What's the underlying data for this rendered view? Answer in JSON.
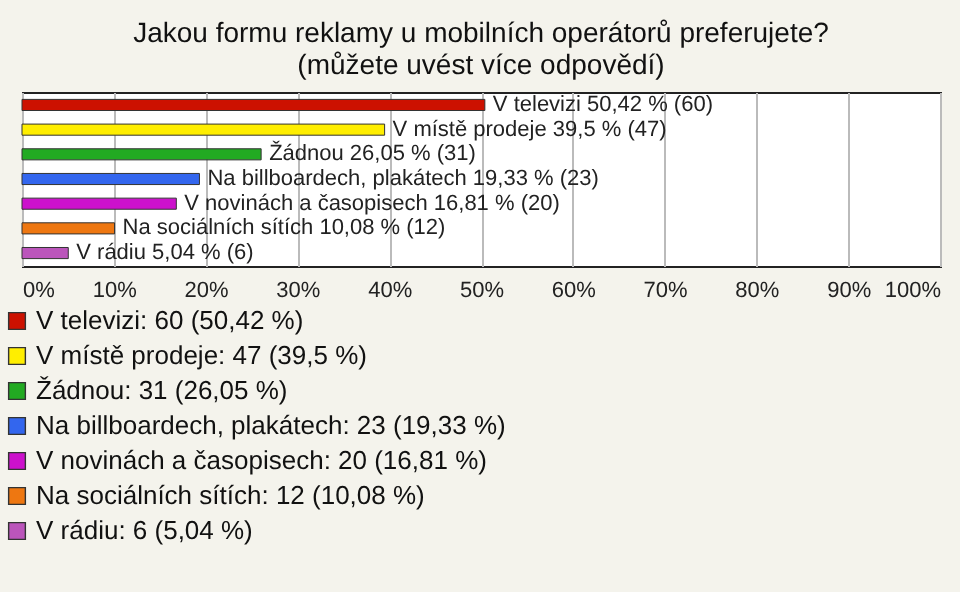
{
  "chart_data": {
    "type": "bar",
    "orientation": "horizontal",
    "title": "Jakou formu reklamy u mobilních operátorů preferujete? (můžete uvést více odpovědí)",
    "categories": [
      null,
      null,
      null,
      null,
      null,
      null,
      null
    ],
    "series": [
      {
        "name": "V televizi: 60 (50,42 %)",
        "color": "#cc1100",
        "values": [
          50.42,
          null,
          null,
          null,
          null,
          null,
          null
        ],
        "value_labels": [
          "V televizi 50,42 % (60)",
          null,
          null,
          null,
          null,
          null,
          null
        ]
      },
      {
        "name": "V místě prodeje: 47 (39,5 %)",
        "color": "#ffee00",
        "values": [
          null,
          39.5,
          null,
          null,
          null,
          null,
          null
        ],
        "value_labels": [
          null,
          "V místě prodeje 39,5 % (47)",
          null,
          null,
          null,
          null,
          null
        ]
      },
      {
        "name": "Žádnou: 31 (26,05 %)",
        "color": "#22aa22",
        "values": [
          null,
          null,
          26.05,
          null,
          null,
          null,
          null
        ],
        "value_labels": [
          null,
          null,
          "Žádnou 26,05 % (31)",
          null,
          null,
          null,
          null
        ]
      },
      {
        "name": "Na billboardech, plakátech: 23 (19,33 %)",
        "color": "#3366ee",
        "values": [
          null,
          null,
          null,
          19.33,
          null,
          null,
          null
        ],
        "value_labels": [
          null,
          null,
          null,
          "Na billboardech, plakátech 19,33 % (23)",
          null,
          null,
          null
        ]
      },
      {
        "name": "V novinách a časopisech: 20 (16,81 %)",
        "color": "#cc11cc",
        "values": [
          null,
          null,
          null,
          null,
          16.81,
          null,
          null
        ],
        "value_labels": [
          null,
          null,
          null,
          null,
          "V novinách a časopisech 16,81 % (20)",
          null,
          null
        ]
      },
      {
        "name": "Na sociálních sítích: 12 (10,08 %)",
        "color": "#ee7711",
        "values": [
          null,
          null,
          null,
          null,
          null,
          10.08,
          null
        ],
        "value_labels": [
          null,
          null,
          null,
          null,
          null,
          "Na sociálních sítích 10,08 % (12)",
          null
        ]
      },
      {
        "name": "V rádiu: 6 (5,04 %)",
        "color": "#bb55bb",
        "values": [
          null,
          null,
          null,
          null,
          null,
          null,
          5.04
        ],
        "value_labels": [
          null,
          null,
          null,
          null,
          null,
          null,
          "V rádiu 5,04 % (6)"
        ]
      }
    ],
    "xlim": [
      0,
      100
    ],
    "xticks": [
      {
        "value": 0,
        "label": "0%"
      },
      {
        "value": 10,
        "label": "10%"
      },
      {
        "value": 20,
        "label": "20%"
      },
      {
        "value": 30,
        "label": "30%"
      },
      {
        "value": 40,
        "label": "40%"
      },
      {
        "value": 50,
        "label": "50%"
      },
      {
        "value": 60,
        "label": "60%"
      },
      {
        "value": 70,
        "label": "70%"
      },
      {
        "value": 80,
        "label": "80%"
      },
      {
        "value": 90,
        "label": "90%"
      },
      {
        "value": 100,
        "label": "100%"
      }
    ],
    "grid": "x",
    "tick_labels": "x",
    "legend": "bottom"
  }
}
